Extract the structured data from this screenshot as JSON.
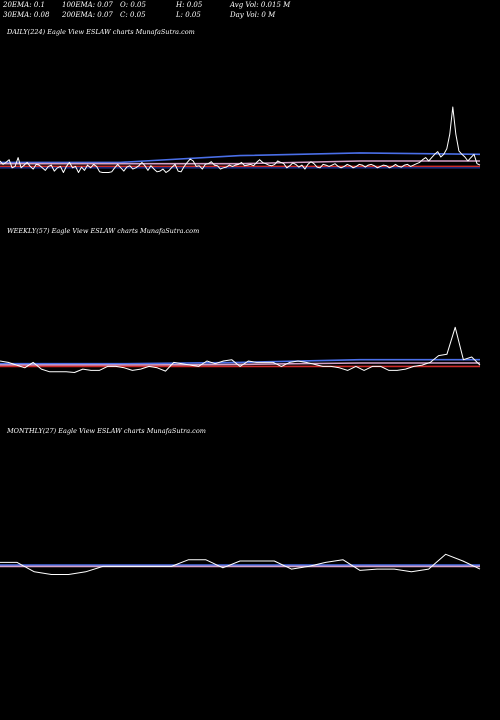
{
  "header": {
    "ema20": "20EMA: 0.1",
    "ema30": "30EMA: 0.08",
    "ema100": "100EMA: 0.07",
    "ema200": "200EMA: 0.07",
    "open": "O: 0.05",
    "close": "C: 0.05",
    "high": "H: 0.05",
    "low": "L: 0.05",
    "avg_vol": "Avg Vol: 0.015 M",
    "day_vol": "Day Vol: 0  M"
  },
  "colors": {
    "background": "#000000",
    "price": "#ffffff",
    "ma_blue": "#4a6fe8",
    "ma_red": "#cc2a2a",
    "ma_pink": "#d4a0c8",
    "ma_navy": "#1c2a7a"
  },
  "chart_data": [
    {
      "type": "line",
      "title": "DAILY(224) Eagle   View  ESLAW charts MunafaSutra.com",
      "symbol": "ESLAW",
      "timeframe": "daily",
      "ylim": [
        0.0,
        0.2
      ],
      "series": [
        {
          "values": [
            0.08,
            0.075,
            0.078,
            0.082,
            0.07,
            0.072,
            0.085,
            0.07,
            0.074,
            0.078,
            0.072,
            0.068,
            0.075,
            0.074,
            0.07,
            0.066,
            0.072,
            0.074,
            0.065,
            0.07,
            0.072,
            0.063,
            0.072,
            0.078,
            0.07,
            0.072,
            0.063,
            0.071,
            0.066,
            0.074,
            0.07,
            0.075,
            0.072,
            0.064,
            0.063,
            0.063,
            0.063,
            0.064,
            0.07,
            0.075,
            0.07,
            0.065,
            0.071,
            0.073,
            0.068,
            0.07,
            0.073,
            0.078,
            0.073,
            0.066,
            0.073,
            0.068,
            0.064,
            0.065,
            0.068,
            0.063,
            0.066,
            0.071,
            0.075,
            0.065,
            0.064,
            0.072,
            0.078,
            0.083,
            0.08,
            0.072,
            0.073,
            0.068,
            0.075,
            0.076,
            0.079,
            0.074,
            0.073,
            0.068,
            0.07,
            0.071,
            0.074,
            0.072,
            0.074,
            0.075,
            0.078,
            0.073,
            0.074,
            0.075,
            0.073,
            0.078,
            0.082,
            0.078,
            0.076,
            0.074,
            0.073,
            0.075,
            0.08,
            0.078,
            0.076,
            0.07,
            0.073,
            0.077,
            0.075,
            0.071,
            0.074,
            0.068,
            0.075,
            0.079,
            0.076,
            0.071,
            0.07,
            0.075,
            0.074,
            0.072,
            0.074,
            0.076,
            0.072,
            0.07,
            0.072,
            0.075,
            0.073,
            0.07,
            0.072,
            0.075,
            0.074,
            0.071,
            0.074,
            0.075,
            0.073,
            0.07,
            0.072,
            0.074,
            0.073,
            0.07,
            0.072,
            0.075,
            0.072,
            0.071,
            0.074,
            0.075,
            0.072,
            0.074,
            0.076,
            0.078,
            0.082,
            0.085,
            0.08,
            0.085,
            0.09,
            0.094,
            0.086,
            0.09,
            0.098,
            0.12,
            0.16,
            0.12,
            0.095,
            0.09,
            0.086,
            0.08,
            0.085,
            0.09,
            0.076,
            0.074
          ]
        },
        {
          "name": "20EMA",
          "values": [
            0.078,
            0.078,
            0.088,
            0.092,
            0.09
          ]
        },
        {
          "name": "30EMA",
          "values": [
            0.076,
            0.076,
            0.076,
            0.08,
            0.08
          ]
        },
        {
          "name": "100EMA",
          "values": [
            0.072,
            0.072,
            0.072,
            0.072,
            0.072
          ]
        },
        {
          "name": "200EMA",
          "values": [
            0.07,
            0.07,
            0.07,
            0.07,
            0.07
          ]
        }
      ]
    },
    {
      "type": "line",
      "title": "WEEKLY(57) Eagle   View  ESLAW charts MunafaSutra.com",
      "symbol": "ESLAW",
      "timeframe": "weekly",
      "ylim": [
        0.0,
        0.2
      ],
      "series": [
        {
          "values": [
            0.08,
            0.078,
            0.074,
            0.07,
            0.078,
            0.068,
            0.064,
            0.064,
            0.064,
            0.063,
            0.068,
            0.066,
            0.066,
            0.072,
            0.072,
            0.07,
            0.066,
            0.068,
            0.072,
            0.07,
            0.065,
            0.078,
            0.076,
            0.074,
            0.072,
            0.08,
            0.076,
            0.08,
            0.082,
            0.072,
            0.08,
            0.078,
            0.078,
            0.078,
            0.072,
            0.078,
            0.08,
            0.078,
            0.075,
            0.072,
            0.072,
            0.07,
            0.066,
            0.072,
            0.066,
            0.072,
            0.072,
            0.066,
            0.066,
            0.068,
            0.072,
            0.074,
            0.078,
            0.088,
            0.09,
            0.13,
            0.082,
            0.086,
            0.074
          ]
        },
        {
          "name": "20EMA",
          "values": [
            0.076,
            0.076,
            0.078,
            0.082,
            0.082
          ]
        },
        {
          "name": "30EMA",
          "values": [
            0.074,
            0.074,
            0.075,
            0.077,
            0.077
          ]
        },
        {
          "name": "100EMA",
          "values": [
            0.072,
            0.072,
            0.072,
            0.072,
            0.072
          ]
        }
      ]
    },
    {
      "type": "line",
      "title": "MONTHLY(27) Eagle   View  ESLAW charts MunafaSutra.com",
      "symbol": "ESLAW",
      "timeframe": "monthly",
      "ylim": [
        0.0,
        0.2
      ],
      "series": [
        {
          "values": [
            0.078,
            0.078,
            0.064,
            0.06,
            0.06,
            0.064,
            0.072,
            0.072,
            0.072,
            0.072,
            0.072,
            0.082,
            0.082,
            0.07,
            0.08,
            0.08,
            0.08,
            0.068,
            0.072,
            0.078,
            0.082,
            0.066,
            0.068,
            0.068,
            0.064,
            0.068,
            0.09,
            0.08,
            0.068
          ]
        },
        {
          "name": "20EMA",
          "values": [
            0.074,
            0.074,
            0.074,
            0.074,
            0.074
          ]
        },
        {
          "name": "30EMA",
          "values": [
            0.072,
            0.072,
            0.072,
            0.072,
            0.072
          ]
        }
      ]
    }
  ]
}
